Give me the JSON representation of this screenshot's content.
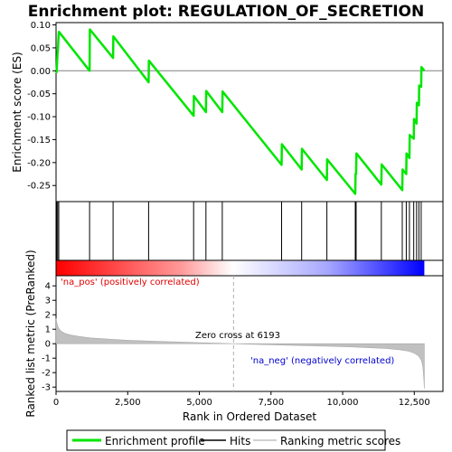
{
  "chart_data": {
    "type": "line",
    "title": "Enrichment plot: REGULATION_OF_SECRETION",
    "xlabel": "Rank in Ordered Dataset",
    "ylabel_top": "Enrichment score (ES)",
    "ylabel_bottom": "Ranked list metric (PreRanked)",
    "xlim": [
      0,
      13500
    ],
    "x_ticks": [
      0,
      2500,
      5000,
      7500,
      10000,
      12500
    ],
    "x_tick_labels": [
      "0",
      "2,500",
      "5,000",
      "7,500",
      "10,000",
      "12,500"
    ],
    "es_ylim": [
      -0.285,
      0.105
    ],
    "es_ticks": [
      0.1,
      0.05,
      0.0,
      -0.05,
      -0.1,
      -0.15,
      -0.2,
      -0.25
    ],
    "es_tick_labels": [
      "0.10",
      "0.05",
      "0.00",
      "-0.05",
      "-0.10",
      "-0.15",
      "-0.20",
      "-0.25"
    ],
    "metric_ylim": [
      -3.3,
      4.7
    ],
    "metric_ticks": [
      4,
      3,
      2,
      1,
      0,
      -1,
      -2,
      -3
    ],
    "metric_tick_labels": [
      "4",
      "3",
      "2",
      "1",
      "0",
      "-1",
      "-2",
      "-3"
    ],
    "n_genes": 12850,
    "enrichment_profile": {
      "x": [
        0,
        20,
        55,
        60,
        95,
        100,
        1170,
        1180,
        1990,
        2000,
        3230,
        3240,
        4800,
        4810,
        5230,
        5240,
        5800,
        5810,
        7870,
        7880,
        8570,
        8580,
        9450,
        9460,
        10440,
        10450,
        10470,
        10480,
        11350,
        11360,
        12080,
        12090,
        12220,
        12230,
        12330,
        12340,
        12480,
        12490,
        12580,
        12590,
        12660,
        12670,
        12740,
        12750,
        12850
      ],
      "y": [
        0.0,
        -0.003,
        0.04,
        0.042,
        0.082,
        0.085,
        0.0,
        0.09,
        0.028,
        0.075,
        -0.025,
        0.022,
        -0.098,
        -0.055,
        -0.09,
        -0.044,
        -0.09,
        -0.045,
        -0.205,
        -0.16,
        -0.215,
        -0.17,
        -0.238,
        -0.193,
        -0.268,
        -0.225,
        -0.225,
        -0.18,
        -0.248,
        -0.204,
        -0.26,
        -0.215,
        -0.225,
        -0.18,
        -0.19,
        -0.14,
        -0.148,
        -0.105,
        -0.115,
        -0.07,
        -0.075,
        -0.032,
        -0.035,
        0.008,
        0.0
      ]
    },
    "hits": [
      20,
      55,
      95,
      1170,
      1990,
      3230,
      4800,
      5230,
      5800,
      7870,
      8570,
      9450,
      10440,
      10470,
      11350,
      12080,
      12220,
      12330,
      12480,
      12580,
      12660,
      12740
    ],
    "zero_cross": 6193,
    "metric_curve": {
      "x": [
        0,
        30,
        80,
        150,
        300,
        500,
        800,
        1200,
        1800,
        2500,
        3500,
        4500,
        5500,
        6193,
        7000,
        8000,
        9000,
        10000,
        10800,
        11500,
        12000,
        12300,
        12500,
        12650,
        12750,
        12800,
        12830,
        12850
      ],
      "y": [
        1.75,
        1.4,
        1.1,
        0.9,
        0.72,
        0.6,
        0.5,
        0.4,
        0.32,
        0.24,
        0.16,
        0.1,
        0.04,
        0.0,
        -0.05,
        -0.1,
        -0.15,
        -0.2,
        -0.26,
        -0.33,
        -0.42,
        -0.52,
        -0.65,
        -0.85,
        -1.15,
        -1.6,
        -2.4,
        -3.1
      ]
    },
    "colors": {
      "profile": "#00e600",
      "hits": "#000000",
      "metric": "#c0c0c0",
      "zero_line": "#b0b0b0",
      "pos_label": "#e00000",
      "neg_label": "#0000d0",
      "bar_red": "#ff0000",
      "bar_white": "#ffffff",
      "bar_blue": "#0000ff"
    },
    "pos_label": "'na_pos' (positively correlated)",
    "neg_label": "'na_neg' (negatively correlated)",
    "zero_cross_label": "Zero cross at 6193",
    "legend": {
      "placement": "bottom",
      "entries": [
        {
          "label": "Enrichment profile",
          "color": "#00e600"
        },
        {
          "label": "Hits",
          "color": "#000000"
        },
        {
          "label": "Ranking metric scores",
          "color": "#c0c0c0"
        }
      ]
    }
  }
}
